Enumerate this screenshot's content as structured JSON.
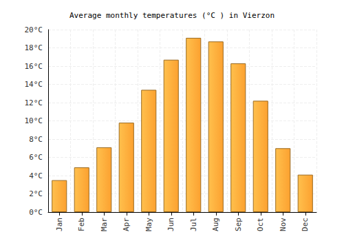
{
  "chart_data": {
    "type": "bar",
    "title": "Average monthly temperatures (°C ) in Vierzon",
    "categories": [
      "Jan",
      "Feb",
      "Mar",
      "Apr",
      "May",
      "Jun",
      "Jul",
      "Aug",
      "Sep",
      "Oct",
      "Nov",
      "Dec"
    ],
    "values": [
      3.5,
      4.9,
      7.1,
      9.8,
      13.4,
      16.7,
      19.1,
      18.7,
      16.3,
      12.2,
      7.0,
      4.1
    ],
    "color": "#fca130",
    "ylim": [
      0,
      20
    ],
    "yticks": [
      {
        "value": 0,
        "label": "0°C"
      },
      {
        "value": 2,
        "label": "2°C"
      },
      {
        "value": 4,
        "label": "4°C"
      },
      {
        "value": 6,
        "label": "6°C"
      },
      {
        "value": 8,
        "label": "8°C"
      },
      {
        "value": 10,
        "label": "10°C"
      },
      {
        "value": 12,
        "label": "12°C"
      },
      {
        "value": 14,
        "label": "14°C"
      },
      {
        "value": 16,
        "label": "16°C"
      },
      {
        "value": 18,
        "label": "18°C"
      },
      {
        "value": 20,
        "label": "20°C"
      }
    ],
    "grid": true
  }
}
